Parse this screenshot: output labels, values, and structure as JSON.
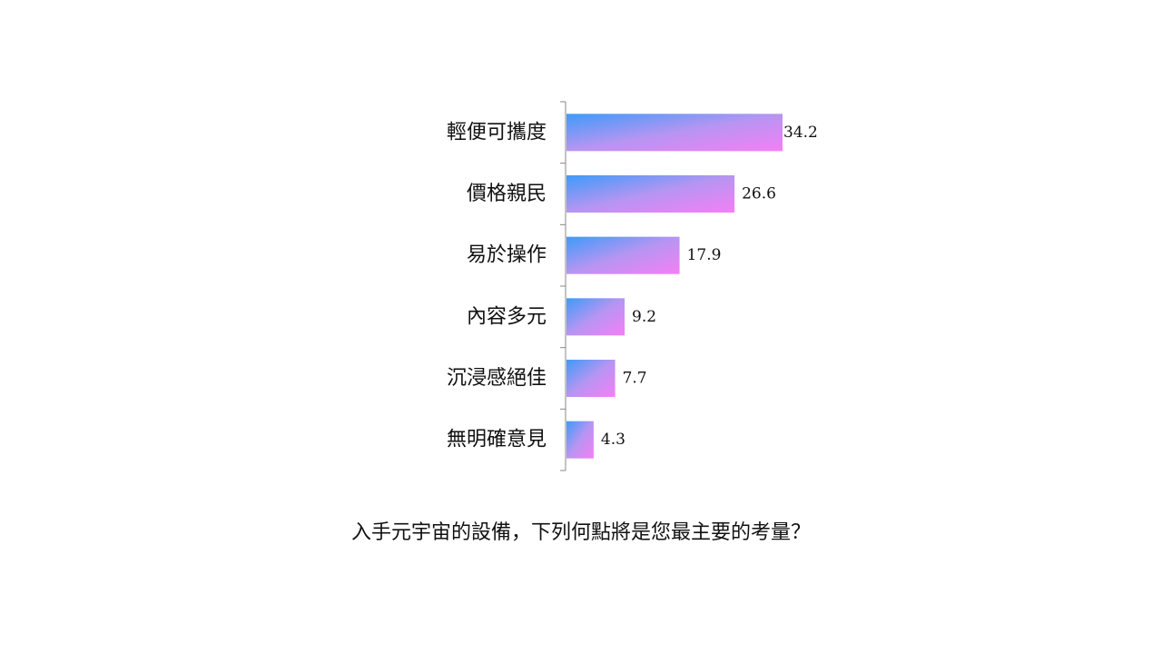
{
  "chart_data": {
    "type": "bar",
    "orientation": "horizontal",
    "categories": [
      "輕便可攜度",
      "價格親民",
      "易於操作",
      "內容多元",
      "沉浸感絕佳",
      "無明確意見"
    ],
    "values": [
      34.2,
      26.6,
      17.9,
      9.2,
      7.7,
      4.3
    ],
    "value_labels": [
      "34.2",
      "26.6",
      "17.9",
      "9.2",
      "7.7",
      "4.3"
    ],
    "title": "入手元宇宙的設備，下列何點將是您最主要的考量？",
    "xlabel": "",
    "ylabel": "",
    "xlim": [
      0,
      34.2
    ],
    "grid": false,
    "legend": "none",
    "colors": {
      "gradient_start": "#3d9bfa",
      "gradient_mid": "#b795f2",
      "gradient_end": "#f47ff5",
      "axis": "#888888",
      "text": "#111111"
    }
  }
}
